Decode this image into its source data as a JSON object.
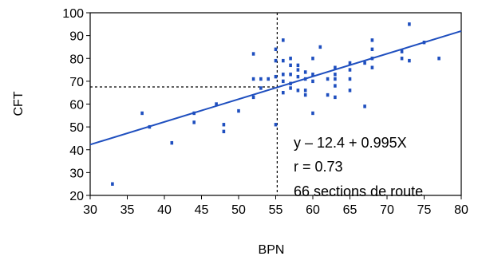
{
  "chart_data": {
    "type": "scatter",
    "xlabel": "BPN",
    "ylabel": "CFT",
    "xlim": [
      30,
      80
    ],
    "ylim": [
      20,
      100
    ],
    "xticks": [
      "30",
      "35",
      "40",
      "45",
      "50",
      "55",
      "60",
      "65",
      "70",
      "75",
      "80"
    ],
    "yticks": [
      "20",
      "30",
      "40",
      "50",
      "60",
      "70",
      "80",
      "90",
      "100"
    ],
    "grid": false,
    "colors": {
      "points": "#1f4fbf",
      "line": "#1f4fbf",
      "reference": "#000000"
    },
    "reference": {
      "x": 55.2,
      "y": 67.5
    },
    "regression": {
      "intercept": 12.4,
      "slope": 0.995,
      "x_range": [
        30,
        80
      ]
    },
    "annotations": [
      "y – 12.4 + 0.995X",
      "r = 0.73",
      "66 sections de route"
    ],
    "points": [
      [
        33,
        25
      ],
      [
        37,
        56
      ],
      [
        38,
        50
      ],
      [
        41,
        43
      ],
      [
        44,
        52
      ],
      [
        44,
        56
      ],
      [
        47,
        60
      ],
      [
        48,
        48
      ],
      [
        48,
        51
      ],
      [
        50,
        57
      ],
      [
        52,
        63
      ],
      [
        52,
        71
      ],
      [
        52,
        82
      ],
      [
        53,
        67
      ],
      [
        53,
        71
      ],
      [
        54,
        71
      ],
      [
        55,
        51
      ],
      [
        55,
        72
      ],
      [
        55,
        79
      ],
      [
        55,
        84
      ],
      [
        56,
        65
      ],
      [
        56,
        70
      ],
      [
        56,
        73
      ],
      [
        56,
        79
      ],
      [
        56,
        88
      ],
      [
        57,
        67
      ],
      [
        57,
        69
      ],
      [
        57,
        73
      ],
      [
        57,
        77
      ],
      [
        57,
        80
      ],
      [
        58,
        66
      ],
      [
        58,
        72
      ],
      [
        58,
        75
      ],
      [
        58,
        77
      ],
      [
        59,
        64
      ],
      [
        59,
        66
      ],
      [
        59,
        71
      ],
      [
        59,
        74
      ],
      [
        60,
        56
      ],
      [
        60,
        70
      ],
      [
        60,
        73
      ],
      [
        60,
        80
      ],
      [
        61,
        85
      ],
      [
        62,
        64
      ],
      [
        62,
        71
      ],
      [
        63,
        63
      ],
      [
        63,
        68
      ],
      [
        63,
        71
      ],
      [
        63,
        73
      ],
      [
        63,
        76
      ],
      [
        65,
        66
      ],
      [
        65,
        71
      ],
      [
        65,
        75
      ],
      [
        65,
        78
      ],
      [
        67,
        59
      ],
      [
        67,
        78
      ],
      [
        68,
        76
      ],
      [
        68,
        80
      ],
      [
        68,
        84
      ],
      [
        68,
        88
      ],
      [
        72,
        80
      ],
      [
        72,
        83
      ],
      [
        73,
        79
      ],
      [
        73,
        95
      ],
      [
        75,
        87
      ],
      [
        77,
        80
      ]
    ]
  }
}
